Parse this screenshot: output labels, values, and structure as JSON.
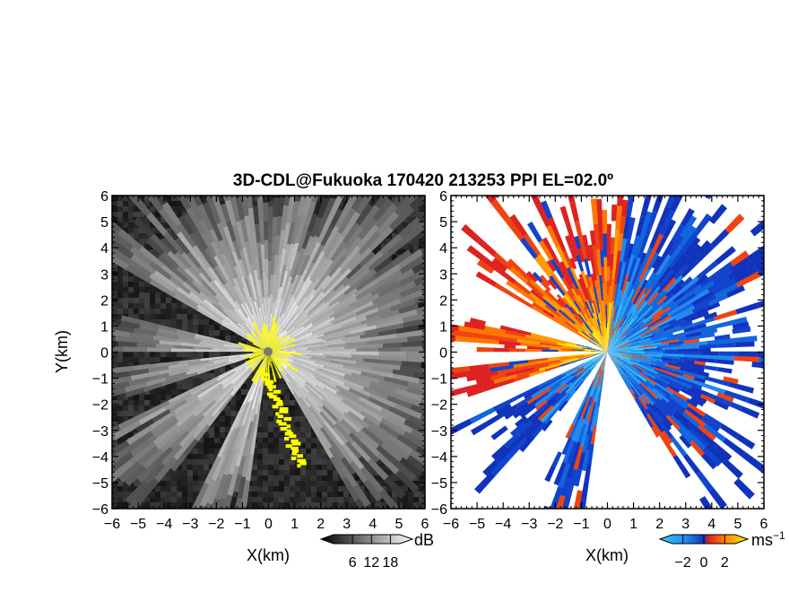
{
  "chart_data": {
    "title": "3D-CDL@Fukuoka 170420 213253 PPI EL=02.0º",
    "type": "heatmap",
    "xlabel": "X(km)",
    "ylabel": "Y(km)",
    "xlim": [
      -6,
      6
    ],
    "ylim": [
      -6,
      6
    ],
    "ticks": [
      "-6",
      "-5",
      "-4",
      "-3",
      "-2",
      "-1",
      "0",
      "1",
      "2",
      "3",
      "4",
      "5",
      "6"
    ],
    "panels": [
      {
        "colormap": "grayscale",
        "clip_color": "#ffff00",
        "colorbar": {
          "unit": "dB",
          "tick_labels": [
            "6",
            "12",
            "18"
          ],
          "ticks": [
            6,
            12,
            18
          ],
          "range": [
            0,
            21
          ]
        }
      },
      {
        "colormap": "doppler",
        "colorbar": {
          "unit": "ms",
          "unit_exp": "−1",
          "tick_labels": [
            "−2",
            "0",
            "2"
          ],
          "ticks": [
            -2,
            0,
            2
          ],
          "range": [
            -3,
            3
          ]
        }
      }
    ]
  }
}
